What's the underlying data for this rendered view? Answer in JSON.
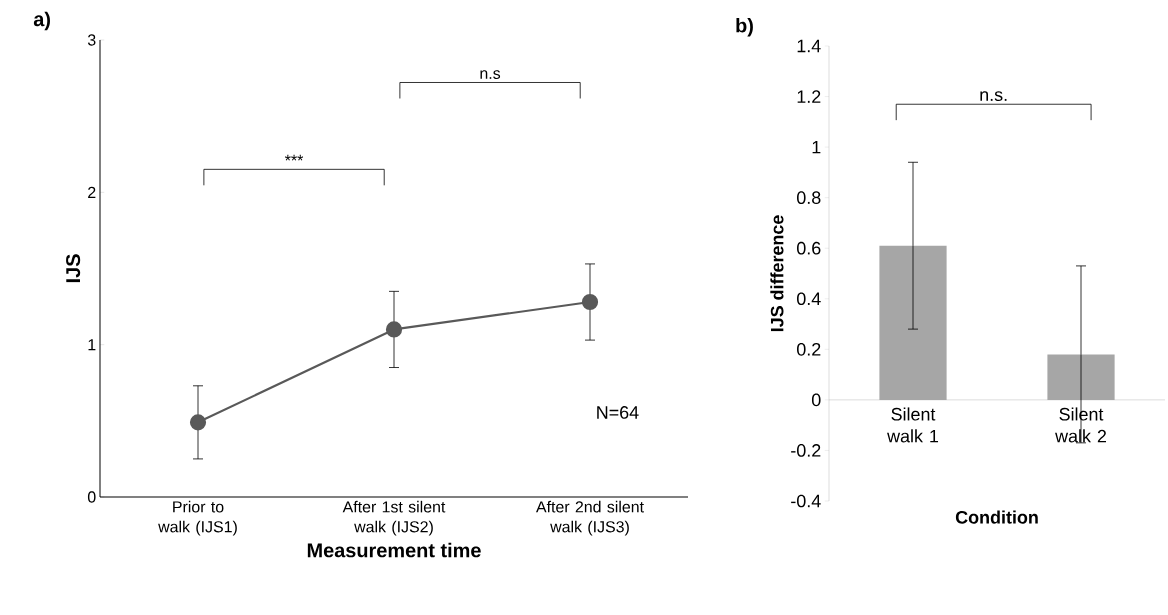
{
  "chart_data": [
    {
      "type": "line",
      "title": "a)",
      "xlabel": "Measurement time",
      "ylabel": "IJS",
      "categories": [
        "Prior to walk (IJS1)",
        "After 1st silent walk (IJS2)",
        "After 2nd silent walk (IJS3)"
      ],
      "values": [
        0.49,
        1.1,
        1.28
      ],
      "errors": [
        0.24,
        0.25,
        0.25
      ],
      "color": "#595959",
      "marker": "circle",
      "ylim": [
        0,
        3
      ],
      "yticks": [
        0,
        1,
        2,
        3
      ],
      "annotations": [
        "***",
        "n.s",
        "N=64"
      ]
    },
    {
      "type": "bar",
      "title": "b)",
      "xlabel": "Condition",
      "ylabel": "IJS difference",
      "categories": [
        "Silent walk 1",
        "Silent walk 2"
      ],
      "values": [
        0.61,
        0.18
      ],
      "errors": [
        0.33,
        0.35
      ],
      "color": "#a6a6a6",
      "ylim": [
        -0.4,
        1.4
      ],
      "yticks": [
        -0.4,
        -0.2,
        0,
        0.2,
        0.4,
        0.6,
        0.8,
        1,
        1.2,
        1.4
      ],
      "annotations": [
        "n.s."
      ]
    }
  ]
}
